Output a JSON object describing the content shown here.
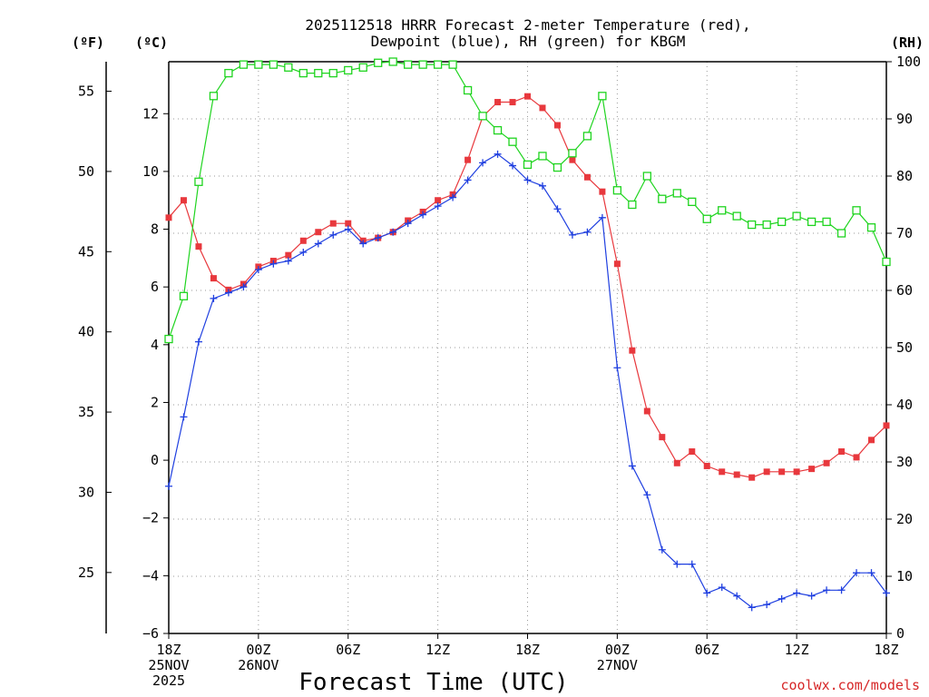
{
  "title_line1": "2025112518 HRRR Forecast 2-meter Temperature (red),",
  "title_line2": "Dewpoint (blue), RH (green) for KBGM",
  "unit_f": "(ºF)",
  "unit_c": "(ºC)",
  "unit_rh": "(RH)",
  "credit": "coolwx.com/models",
  "colors": {
    "temperature": "#e8383d",
    "dewpoint": "#1f3fe0",
    "rh": "#1fd41f"
  },
  "chart_data": {
    "type": "line",
    "title": "2025112518 HRRR Forecast 2-meter Temperature (red), Dewpoint (blue), RH (green) for KBGM",
    "xlabel": "Forecast Time (UTC)",
    "x_unit": "forecast hour",
    "xlim": [
      0,
      48
    ],
    "x_ticks": [
      {
        "hour": 0,
        "lines": [
          "18Z",
          "25NOV",
          "2025"
        ]
      },
      {
        "hour": 6,
        "lines": [
          "00Z",
          "26NOV"
        ]
      },
      {
        "hour": 12,
        "lines": [
          "06Z"
        ]
      },
      {
        "hour": 18,
        "lines": [
          "12Z"
        ]
      },
      {
        "hour": 24,
        "lines": [
          "18Z"
        ]
      },
      {
        "hour": 30,
        "lines": [
          "00Z",
          "27NOV"
        ]
      },
      {
        "hour": 36,
        "lines": [
          "06Z"
        ]
      },
      {
        "hour": 42,
        "lines": [
          "12Z"
        ]
      },
      {
        "hour": 48,
        "lines": [
          "18Z"
        ]
      }
    ],
    "y_celsius": {
      "label": "(ºC)",
      "ylim": [
        -6,
        13.8
      ],
      "ticks": [
        -6,
        -4,
        -2,
        0,
        2,
        4,
        6,
        8,
        10,
        12
      ]
    },
    "y_fahrenheit": {
      "label": "(ºF)",
      "ticks": [
        25,
        30,
        35,
        40,
        45,
        50,
        55
      ]
    },
    "y_rh": {
      "label": "(RH)",
      "ylim": [
        0,
        100
      ],
      "ticks": [
        0,
        10,
        20,
        30,
        40,
        50,
        60,
        70,
        80,
        90,
        100
      ]
    },
    "series": [
      {
        "name": "Temperature",
        "unit": "C",
        "marker": "filled-square",
        "values": [
          8.4,
          9.0,
          7.4,
          6.3,
          5.9,
          6.1,
          6.7,
          6.9,
          7.1,
          7.6,
          7.9,
          8.2,
          8.2,
          7.6,
          7.7,
          7.9,
          8.3,
          8.6,
          9.0,
          9.2,
          10.4,
          11.9,
          12.4,
          12.4,
          12.6,
          12.2,
          11.6,
          10.4,
          9.8,
          9.3,
          6.8,
          3.8,
          1.7,
          0.8,
          -0.1,
          0.3,
          -0.2,
          -0.4,
          -0.5,
          -0.6,
          -0.4,
          -0.4,
          -0.4,
          -0.3,
          -0.1,
          0.3,
          0.1,
          0.7,
          1.2
        ]
      },
      {
        "name": "Dewpoint",
        "unit": "C",
        "marker": "plus",
        "values": [
          -0.9,
          1.5,
          4.1,
          5.6,
          5.8,
          6.0,
          6.6,
          6.8,
          6.9,
          7.2,
          7.5,
          7.8,
          8.0,
          7.5,
          7.7,
          7.9,
          8.2,
          8.5,
          8.8,
          9.1,
          9.7,
          10.3,
          10.6,
          10.2,
          9.7,
          9.5,
          8.7,
          7.8,
          7.9,
          8.4,
          3.2,
          -0.2,
          -1.2,
          -3.1,
          -3.6,
          -3.6,
          -4.6,
          -4.4,
          -4.7,
          -5.1,
          -5.0,
          -4.8,
          -4.6,
          -4.7,
          -4.5,
          -4.5,
          -3.9,
          -3.9,
          -4.6
        ]
      },
      {
        "name": "RH",
        "unit": "%",
        "axis": "right",
        "marker": "open-square",
        "values": [
          51.5,
          59,
          79,
          94,
          98,
          99.5,
          99.5,
          99.5,
          99,
          98,
          98,
          98,
          98.5,
          99,
          99.8,
          100,
          99.5,
          99.5,
          99.5,
          99.5,
          95,
          90.5,
          88,
          86,
          82,
          83.5,
          81.5,
          84,
          87,
          94,
          77.5,
          75,
          80,
          76,
          77,
          75.5,
          72.5,
          74,
          73,
          71.5,
          71.5,
          72,
          73,
          72,
          72,
          70,
          74,
          71,
          65
        ]
      }
    ]
  }
}
